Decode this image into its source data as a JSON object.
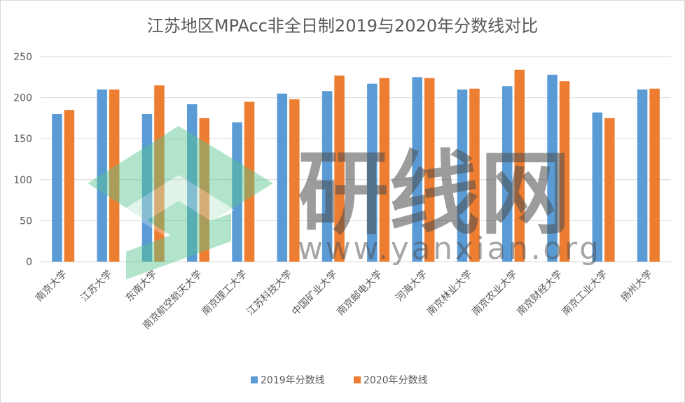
{
  "chart_data": {
    "type": "bar",
    "title": "江苏地区MPAcc非全日制2019与2020年分数线对比",
    "xlabel": "",
    "ylabel": "",
    "ylim": [
      0,
      250
    ],
    "yticks": [
      0,
      50,
      100,
      150,
      200,
      250
    ],
    "grid": true,
    "legend_position": "bottom",
    "categories": [
      "南京大学",
      "江苏大学",
      "东南大学",
      "南京航空航天大学",
      "南京理工大学",
      "江苏科技大学",
      "中国矿业大学",
      "南京邮电大学",
      "河海大学",
      "南京林业大学",
      "南京农业大学",
      "南京财经大学",
      "南京工业大学",
      "扬州大学"
    ],
    "series": [
      {
        "name": "2019年分数线",
        "color": "#5b9bd5",
        "values": [
          180,
          210,
          180,
          192,
          170,
          205,
          208,
          217,
          225,
          210,
          214,
          228,
          182,
          210
        ]
      },
      {
        "name": "2020年分数线",
        "color": "#ed7d31",
        "values": [
          185,
          210,
          215,
          175,
          195,
          198,
          227,
          224,
          224,
          211,
          234,
          220,
          175,
          211
        ]
      }
    ]
  },
  "watermark": {
    "text": "研线网",
    "url": "www.yanxian.org",
    "logo_color": "#56c58d"
  }
}
